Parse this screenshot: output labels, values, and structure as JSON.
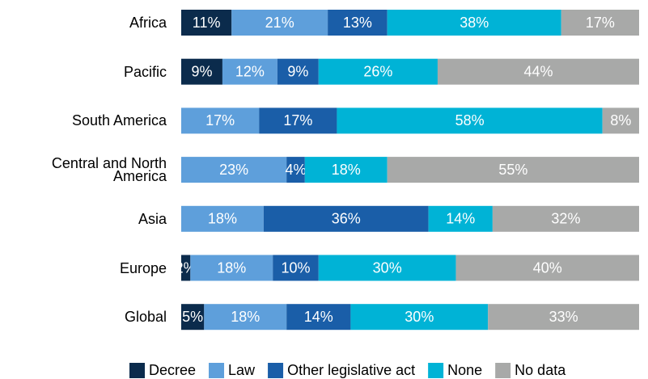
{
  "chart_data": {
    "type": "stacked-bar-horizontal",
    "categories": [
      "Africa",
      "Pacific",
      "South America",
      "Central and North America",
      "Asia",
      "Europe",
      "Global"
    ],
    "xlim": [
      0,
      100
    ],
    "legend": "bottom",
    "series": [
      {
        "name": "Decree",
        "color": "#0b2b4c",
        "values": [
          11,
          9,
          null,
          null,
          null,
          2,
          5
        ],
        "value_labels": [
          "11%",
          "9%",
          null,
          null,
          null,
          "2%",
          "5%"
        ]
      },
      {
        "name": "Law",
        "color": "#5e9fdb",
        "values": [
          21,
          12,
          17,
          23,
          18,
          18,
          18
        ],
        "value_labels": [
          "21%",
          "12%",
          "17%",
          "23%",
          "18%",
          "18%",
          "18%"
        ]
      },
      {
        "name": "Other legislative act",
        "color": "#1a5ea8",
        "values": [
          13,
          9,
          17,
          4,
          36,
          10,
          14
        ],
        "value_labels": [
          "13%",
          "9%",
          "17%",
          "4%",
          "36%",
          "10%",
          "14%"
        ]
      },
      {
        "name": "None",
        "color": "#00b3d6",
        "values": [
          38,
          26,
          58,
          18,
          14,
          30,
          30
        ],
        "value_labels": [
          "38%",
          "26%",
          "58%",
          "18%",
          "14%",
          "30%",
          "30%"
        ]
      },
      {
        "name": "No data",
        "color": "#a8a9a8",
        "values": [
          17,
          44,
          8,
          55,
          32,
          40,
          33
        ],
        "value_labels": [
          "17%",
          "44%",
          "8%",
          "55%",
          "32%",
          "40%",
          "33%"
        ]
      }
    ]
  }
}
